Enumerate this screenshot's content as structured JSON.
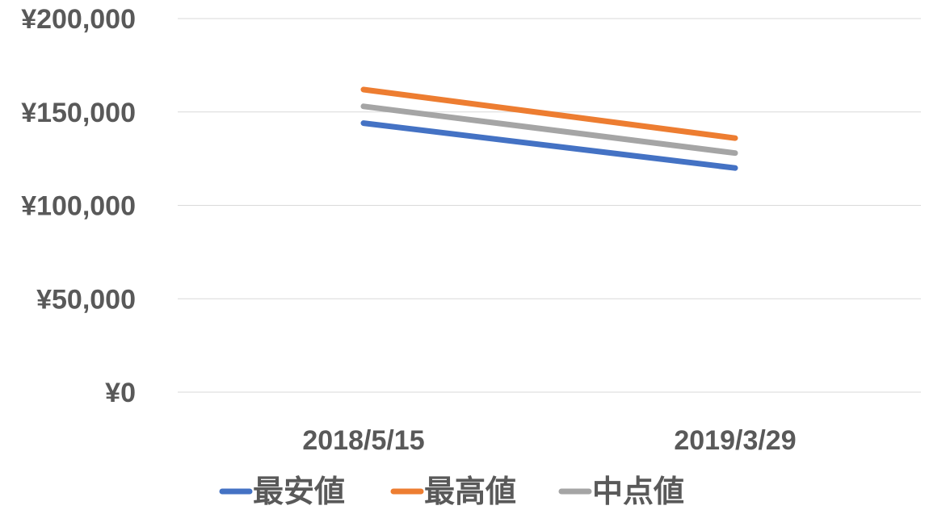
{
  "chart_data": {
    "type": "line",
    "title": "",
    "xlabel": "",
    "ylabel": "",
    "categories": [
      "2018/5/15",
      "2019/3/29"
    ],
    "ylim": [
      0,
      200000
    ],
    "yticks": [
      0,
      50000,
      100000,
      150000,
      200000
    ],
    "ytick_labels": [
      "¥0",
      "¥50,000",
      "¥100,000",
      "¥150,000",
      "¥200,000"
    ],
    "grid": true,
    "legend_position": "bottom",
    "series": [
      {
        "name": "最安値",
        "values": [
          144000,
          120000
        ],
        "color": "#4472C4"
      },
      {
        "name": "最高値",
        "values": [
          162000,
          136000
        ],
        "color": "#ED7D31"
      },
      {
        "name": "中点値",
        "values": [
          153000,
          128000
        ],
        "color": "#A5A5A5"
      }
    ]
  }
}
